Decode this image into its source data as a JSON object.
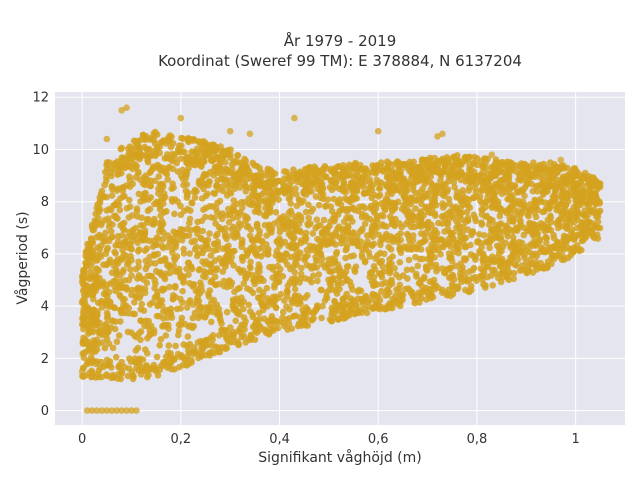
{
  "chart_data": {
    "type": "scatter",
    "title_lines": [
      "År 1979 - 2019",
      "Koordinat (Sweref 99 TM): E 378884, N 6137204"
    ],
    "xlabel": "Signifikant våghöjd (m)",
    "ylabel": "Vågperiod (s)",
    "xlim": [
      -0.055,
      1.1
    ],
    "ylim": [
      -0.55,
      12.2
    ],
    "x_ticks": [
      0,
      0.2,
      0.4,
      0.6,
      0.8,
      1
    ],
    "x_tick_labels": [
      "0",
      "0,2",
      "0,4",
      "0,6",
      "0,8",
      "1"
    ],
    "y_ticks": [
      0,
      2,
      4,
      6,
      8,
      10,
      12
    ],
    "y_tick_labels": [
      "0",
      "2",
      "4",
      "6",
      "8",
      "10",
      "12"
    ],
    "grid": true,
    "legend": "none",
    "marker_color": "#d4a21f",
    "background_color": "#e5e5ef",
    "series": [
      {
        "name": "",
        "envelope": {
          "x": [
            0.0,
            0.05,
            0.1,
            0.15,
            0.2,
            0.25,
            0.3,
            0.35,
            0.4,
            0.45,
            0.5,
            0.55,
            0.6,
            0.65,
            0.7,
            0.75,
            0.8,
            0.85,
            0.9,
            0.95,
            1.0,
            1.05
          ],
          "y_min": [
            1.3,
            1.2,
            1.2,
            1.3,
            1.6,
            2.0,
            2.4,
            2.7,
            3.0,
            3.2,
            3.4,
            3.6,
            3.8,
            4.0,
            4.2,
            4.4,
            4.6,
            4.9,
            5.2,
            5.5,
            6.0,
            6.6
          ],
          "y_max": [
            5.5,
            9.5,
            10.5,
            10.7,
            10.5,
            10.3,
            10.0,
            9.5,
            9.2,
            9.3,
            9.4,
            9.5,
            9.5,
            9.6,
            9.7,
            9.8,
            9.7,
            9.6,
            9.5,
            9.5,
            9.3,
            8.8
          ]
        },
        "points": [
          {
            "x": 0.08,
            "y": 11.5
          },
          {
            "x": 0.09,
            "y": 11.6
          },
          {
            "x": 0.2,
            "y": 11.2
          },
          {
            "x": 0.43,
            "y": 11.2
          },
          {
            "x": 0.05,
            "y": 10.4
          },
          {
            "x": 0.3,
            "y": 10.7
          },
          {
            "x": 0.34,
            "y": 10.6
          },
          {
            "x": 0.6,
            "y": 10.7
          },
          {
            "x": 0.72,
            "y": 10.5
          },
          {
            "x": 0.73,
            "y": 10.6
          },
          {
            "x": 0.83,
            "y": 9.8
          },
          {
            "x": 0.97,
            "y": 9.6
          },
          {
            "x": 0.0,
            "y": 1.5
          },
          {
            "x": 0.02,
            "y": 5.9
          },
          {
            "x": 1.04,
            "y": 8.3
          },
          {
            "x": 0.01,
            "y": 0.0
          },
          {
            "x": 0.02,
            "y": 0.0
          },
          {
            "x": 0.03,
            "y": 0.0
          },
          {
            "x": 0.04,
            "y": 0.0
          },
          {
            "x": 0.05,
            "y": 0.0
          },
          {
            "x": 0.06,
            "y": 0.0
          },
          {
            "x": 0.07,
            "y": 0.0
          },
          {
            "x": 0.08,
            "y": 0.0
          },
          {
            "x": 0.09,
            "y": 0.0
          },
          {
            "x": 0.1,
            "y": 0.0
          },
          {
            "x": 0.11,
            "y": 0.0
          }
        ]
      }
    ]
  }
}
